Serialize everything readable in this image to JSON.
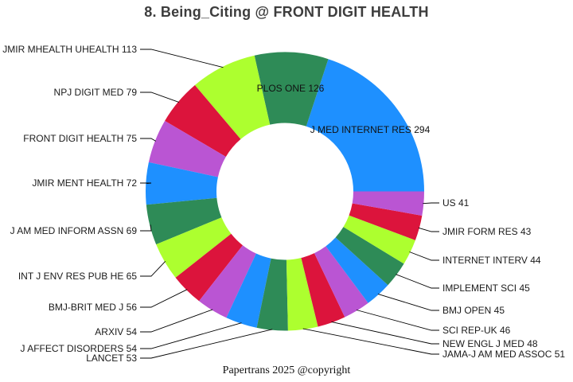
{
  "title": "8. Being_Citing @ FRONT DIGIT HEALTH",
  "footer": "Papertrans 2025 @copyright",
  "palette": [
    "#1E90FF",
    "#2E8B57",
    "#ADFF2F",
    "#DC143C",
    "#BA55D3"
  ],
  "chart_data": {
    "type": "pie",
    "subtype": "donut",
    "title": "8. Being_Citing @ FRONT DIGIT HEALTH",
    "total": 1473,
    "start_angle_deg": 0,
    "direction": "counterclockwise",
    "grid": false,
    "legend": "none",
    "label_format": "NAME VALUE",
    "series": [
      {
        "name": "J MED INTERNET RES",
        "value": 294,
        "color": "#1E90FF",
        "label_placement": "inside"
      },
      {
        "name": "PLOS ONE",
        "value": 126,
        "color": "#2E8B57",
        "label_placement": "inside"
      },
      {
        "name": "JMIR MHEALTH UHEALTH",
        "value": 113,
        "color": "#ADFF2F",
        "label_placement": "left"
      },
      {
        "name": "NPJ DIGIT MED",
        "value": 79,
        "color": "#DC143C",
        "label_placement": "left"
      },
      {
        "name": "FRONT DIGIT HEALTH",
        "value": 75,
        "color": "#BA55D3",
        "label_placement": "left"
      },
      {
        "name": "JMIR MENT HEALTH",
        "value": 72,
        "color": "#1E90FF",
        "label_placement": "left"
      },
      {
        "name": "J AM MED INFORM ASSN",
        "value": 69,
        "color": "#2E8B57",
        "label_placement": "left"
      },
      {
        "name": "INT J ENV RES PUB HE",
        "value": 65,
        "color": "#ADFF2F",
        "label_placement": "left"
      },
      {
        "name": "BMJ-BRIT MED J",
        "value": 56,
        "color": "#DC143C",
        "label_placement": "left"
      },
      {
        "name": "ARXIV",
        "value": 54,
        "color": "#BA55D3",
        "label_placement": "left"
      },
      {
        "name": "J AFFECT DISORDERS",
        "value": 54,
        "color": "#1E90FF",
        "label_placement": "left"
      },
      {
        "name": "LANCET",
        "value": 53,
        "color": "#2E8B57",
        "label_placement": "left"
      },
      {
        "name": "JAMA-J AM MED ASSOC",
        "value": 51,
        "color": "#ADFF2F",
        "label_placement": "right"
      },
      {
        "name": "NEW ENGL J MED",
        "value": 48,
        "color": "#DC143C",
        "label_placement": "right"
      },
      {
        "name": "SCI REP-UK",
        "value": 46,
        "color": "#BA55D3",
        "label_placement": "right"
      },
      {
        "name": "BMJ OPEN",
        "value": 45,
        "color": "#1E90FF",
        "label_placement": "right"
      },
      {
        "name": "IMPLEMENT SCI",
        "value": 45,
        "color": "#2E8B57",
        "label_placement": "right"
      },
      {
        "name": "INTERNET INTERV",
        "value": 44,
        "color": "#ADFF2F",
        "label_placement": "right"
      },
      {
        "name": "JMIR FORM RES",
        "value": 43,
        "color": "#DC143C",
        "label_placement": "right"
      },
      {
        "name": "US",
        "value": 41,
        "color": "#BA55D3",
        "label_placement": "right"
      }
    ]
  }
}
